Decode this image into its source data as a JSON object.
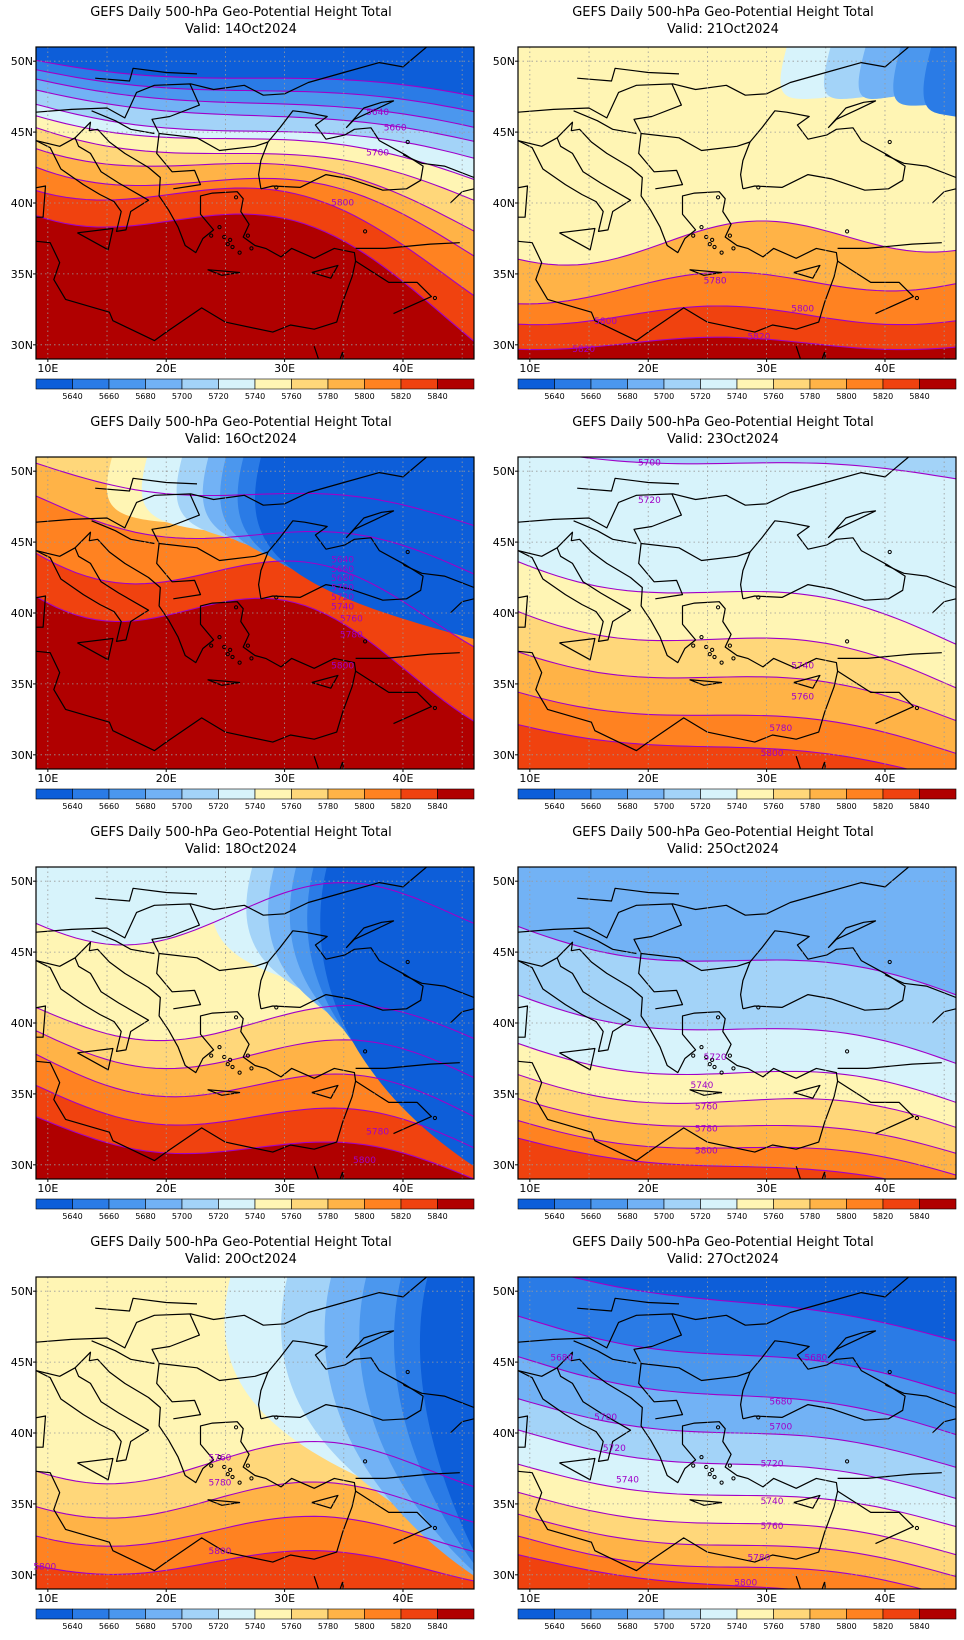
{
  "title": "GEFS Daily 500-hPa Geo-Potential Height Total",
  "lat_labels": [
    "50N",
    "45N",
    "40N",
    "35N",
    "30N"
  ],
  "lon_labels": [
    "10E",
    "20E",
    "30E",
    "40E"
  ],
  "colorbar": {
    "levels": [
      "5640",
      "5660",
      "5680",
      "5700",
      "5720",
      "5740",
      "5760",
      "5780",
      "5800",
      "5820",
      "5840"
    ],
    "colors": [
      "#0d5ed9",
      "#2a7be6",
      "#4b97ee",
      "#72b2f5",
      "#a3d3f8",
      "#d7f3fb",
      "#fff5b4",
      "#ffd77a",
      "#ffb347",
      "#ff8221",
      "#f0420f",
      "#b00000"
    ]
  },
  "panels": [
    {
      "valid": "Valid: 14Oct2024",
      "contour_labels": [
        "5640",
        "5660",
        "5700",
        "5800"
      ]
    },
    {
      "valid": "Valid: 21Oct2024",
      "contour_labels": [
        "5780",
        "5800",
        "5820",
        "5800",
        "5820"
      ]
    },
    {
      "valid": "Valid: 16Oct2024",
      "contour_labels": [
        "5640",
        "5660",
        "5680",
        "5700",
        "5720",
        "5740",
        "5760",
        "5780",
        "5800"
      ]
    },
    {
      "valid": "Valid: 23Oct2024",
      "contour_labels": [
        "5700",
        "5720",
        "5740",
        "5760",
        "5780",
        "5800"
      ]
    },
    {
      "valid": "Valid: 18Oct2024",
      "contour_labels": [
        "5780",
        "5800"
      ]
    },
    {
      "valid": "Valid: 25Oct2024",
      "contour_labels": [
        "5720",
        "5740",
        "5760",
        "5780",
        "5800"
      ]
    },
    {
      "valid": "Valid: 20Oct2024",
      "contour_labels": [
        "5760",
        "5780",
        "5800",
        "5800"
      ]
    },
    {
      "valid": "Valid: 27Oct2024",
      "contour_labels": [
        "5680",
        "5680",
        "5680",
        "5700",
        "5700",
        "5720",
        "5720",
        "5740",
        "5740",
        "5760",
        "5780",
        "5800"
      ]
    }
  ]
}
